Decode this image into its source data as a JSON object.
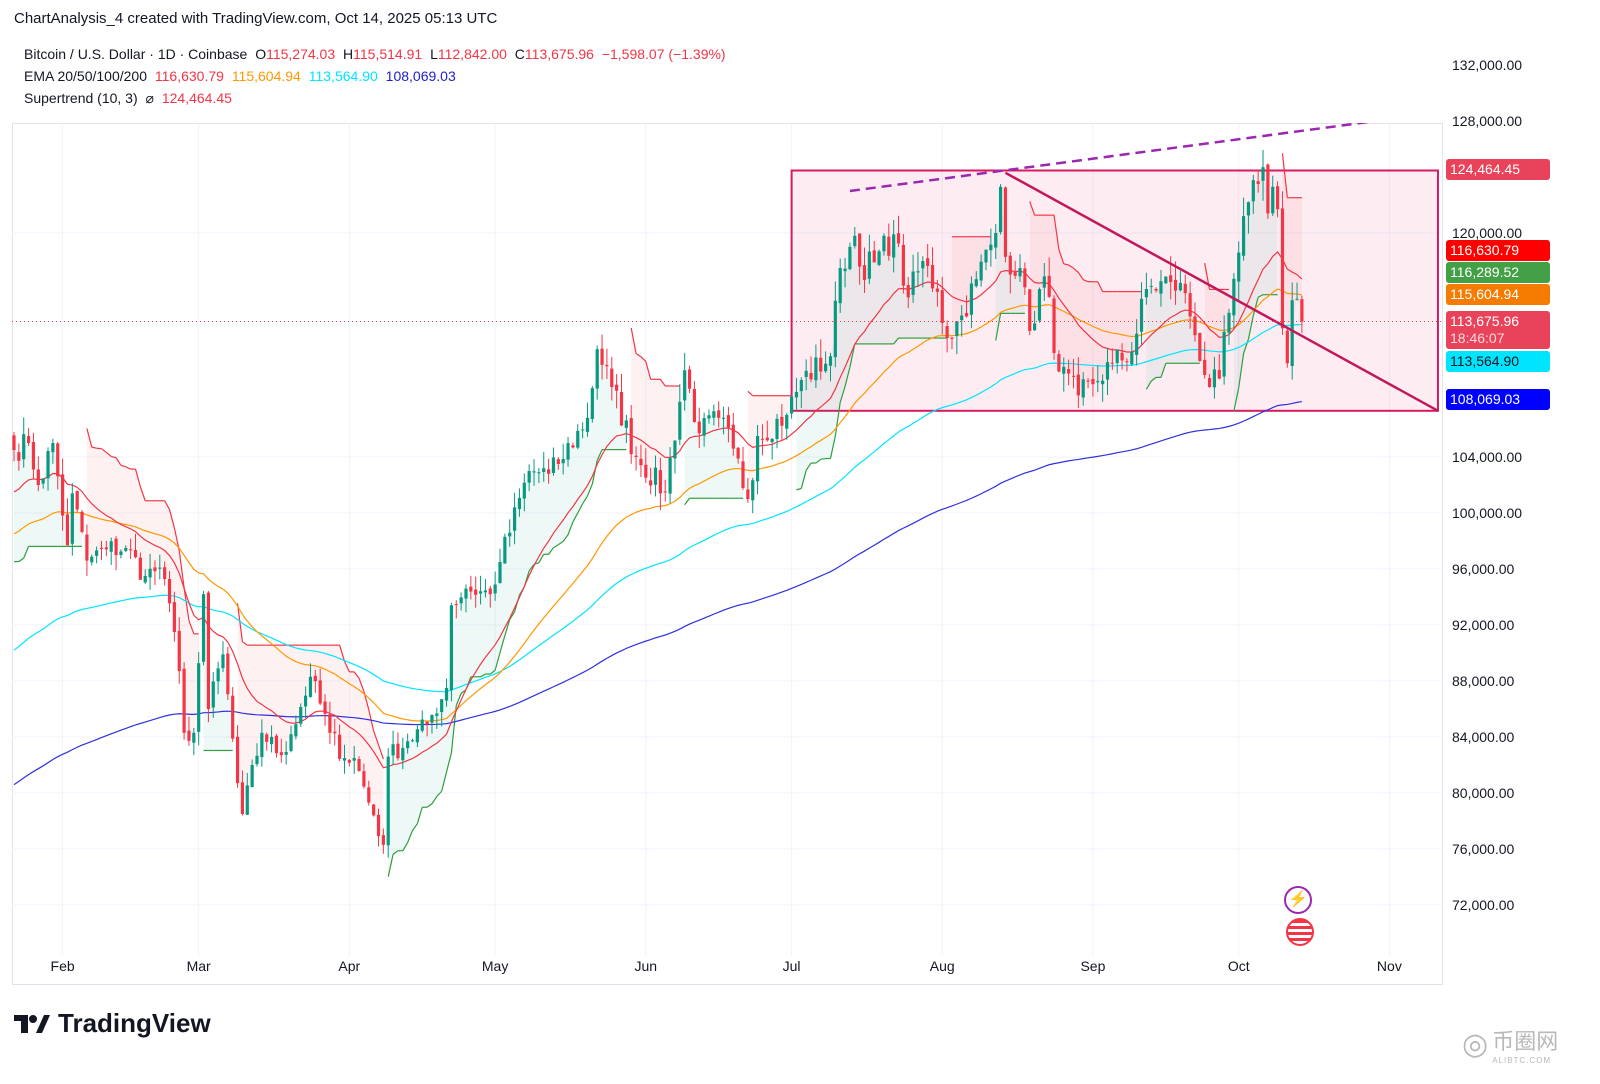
{
  "header": {
    "title": "ChartAnalysis_4 created with TradingView.com, Oct 14, 2025 05:13 UTC",
    "symbol": "Bitcoin / U.S. Dollar · 1D · Coinbase",
    "open_label": "O",
    "open": "115,274.03",
    "high_label": "H",
    "high": "115,514.91",
    "low_label": "L",
    "low": "112,842.00",
    "close_label": "C",
    "close": "113,675.96",
    "change": "−1,598.07 (−1.39%)",
    "ema_label": "EMA 20/50/100/200",
    "ema20": "116,630.79",
    "ema50": "115,604.94",
    "ema100": "113,564.90",
    "ema200": "108,069.03",
    "supertrend_label": "Supertrend (10, 3)",
    "supertrend_symbol": "⌀",
    "supertrend_value": "124,464.45"
  },
  "price_labels": [
    {
      "text": "124,464.45",
      "value": 124464.45,
      "bg": "#e8435a",
      "fg": "#ffffff"
    },
    {
      "text": "116,630.79",
      "value": 116630.79,
      "bg": "#ff0000",
      "fg": "#ffffff"
    },
    {
      "text": "116,289.52",
      "value": 116289.52,
      "bg": "#43a047",
      "fg": "#ffffff"
    },
    {
      "text": "115,604.94",
      "value": 115604.94,
      "bg": "#f57c00",
      "fg": "#ffffff"
    },
    {
      "text": "113,675.96",
      "sub": "18:46:07",
      "value": 113675.96,
      "bg": "#e8435a",
      "fg": "#ffffff"
    },
    {
      "text": "113,564.90",
      "value": 113564.9,
      "bg": "#00e5ff",
      "fg": "#131722"
    },
    {
      "text": "108,069.03",
      "value": 108069.03,
      "bg": "#0000ff",
      "fg": "#ffffff"
    }
  ],
  "colors": {
    "up": "#089981",
    "down": "#f23645",
    "ema20": "#f23645",
    "ema50": "#ff9800",
    "ema100": "#00e5ff",
    "ema200": "#3030e0",
    "st_up": "#2e9e3e",
    "st_down": "#f23645",
    "drawing": "#c2185b",
    "dashed": "#9c27b0"
  },
  "footer": {
    "brand": "TradingView",
    "watermark": "币圈网",
    "watermark_sub": "ALIBTC.COM"
  },
  "chart_data": {
    "type": "candlestick",
    "title": "Bitcoin / U.S. Dollar · 1D · Coinbase",
    "start_date": "2025-01-22",
    "ylim": [
      69000,
      135000
    ],
    "y_ticks": [
      "132,000.00",
      "128,000.00",
      "120,000.00",
      "104,000.00",
      "100,000.00",
      "96,000.00",
      "92,000.00",
      "88,000.00",
      "84,000.00",
      "80,000.00",
      "76,000.00",
      "72,000.00"
    ],
    "y_tick_values": [
      132000,
      128000,
      120000,
      104000,
      100000,
      96000,
      92000,
      88000,
      84000,
      80000,
      76000,
      72000
    ],
    "x_ticks": [
      {
        "label": "Feb",
        "date": "02-01"
      },
      {
        "label": "Mar",
        "date": "03-01"
      },
      {
        "label": "Apr",
        "date": "04-01"
      },
      {
        "label": "May",
        "date": "05-01"
      },
      {
        "label": "Jun",
        "date": "06-01"
      },
      {
        "label": "Jul",
        "date": "07-01"
      },
      {
        "label": "Aug",
        "date": "08-01"
      },
      {
        "label": "Sep",
        "date": "09-01"
      },
      {
        "label": "Oct",
        "date": "10-01"
      },
      {
        "label": "Nov",
        "date": "11-01"
      }
    ],
    "xlim_dates": [
      "01-22",
      "11-12"
    ],
    "close_keypoints_k": [
      [
        "01-22",
        104.5
      ],
      [
        "01-25",
        105
      ],
      [
        "01-27",
        102
      ],
      [
        "01-30",
        105
      ],
      [
        "02-02",
        97.7
      ],
      [
        "02-03",
        101.4
      ],
      [
        "02-06",
        96.6
      ],
      [
        "02-10",
        97.4
      ],
      [
        "02-14",
        97.5
      ],
      [
        "02-18",
        95.5
      ],
      [
        "02-21",
        96.1
      ],
      [
        "02-24",
        91.5
      ],
      [
        "02-25",
        88.7
      ],
      [
        "02-26",
        84.3
      ],
      [
        "02-28",
        84.3
      ],
      [
        "03-02",
        94.2
      ],
      [
        "03-03",
        86
      ],
      [
        "03-06",
        89.9
      ],
      [
        "03-09",
        80.7
      ],
      [
        "03-10",
        78.5
      ],
      [
        "03-14",
        84.3
      ],
      [
        "03-18",
        82.7
      ],
      [
        "03-20",
        84.2
      ],
      [
        "03-24",
        88.3
      ],
      [
        "03-28",
        84.3
      ],
      [
        "03-31",
        82.5
      ],
      [
        "04-02",
        82.5
      ],
      [
        "04-06",
        78.4
      ],
      [
        "04-08",
        76.3
      ],
      [
        "04-09",
        82.6
      ],
      [
        "04-13",
        83.7
      ],
      [
        "04-17",
        84.9
      ],
      [
        "04-21",
        87.5
      ],
      [
        "04-22",
        93.4
      ],
      [
        "04-25",
        94.6
      ],
      [
        "04-30",
        94.2
      ],
      [
        "05-02",
        96.5
      ],
      [
        "05-08",
        103
      ],
      [
        "05-12",
        102.8
      ],
      [
        "05-14",
        103.5
      ],
      [
        "05-20",
        106.8
      ],
      [
        "05-22",
        111.7
      ],
      [
        "05-25",
        109
      ],
      [
        "05-30",
        104
      ],
      [
        "06-05",
        101.5
      ],
      [
        "06-09",
        110.2
      ],
      [
        "06-12",
        105.7
      ],
      [
        "06-16",
        106.8
      ],
      [
        "06-19",
        104.6
      ],
      [
        "06-22",
        101
      ],
      [
        "06-24",
        105.5
      ],
      [
        "06-30",
        107
      ],
      [
        "07-03",
        109.5
      ],
      [
        "07-09",
        111.2
      ],
      [
        "07-11",
        117.5
      ],
      [
        "07-14",
        119.8
      ],
      [
        "07-15",
        117.6
      ],
      [
        "07-18",
        117.9
      ],
      [
        "07-22",
        119.9
      ],
      [
        "07-25",
        115.4
      ],
      [
        "07-28",
        118
      ],
      [
        "07-31",
        115.8
      ],
      [
        "08-02",
        112.5
      ],
      [
        "08-05",
        114.1
      ],
      [
        "08-08",
        116.7
      ],
      [
        "08-12",
        120
      ],
      [
        "08-13",
        123.3
      ],
      [
        "08-14",
        118.3
      ],
      [
        "08-17",
        117.5
      ],
      [
        "08-19",
        113
      ],
      [
        "08-22",
        116.9
      ],
      [
        "08-25",
        110.1
      ],
      [
        "08-29",
        108.4
      ],
      [
        "09-01",
        109.2
      ],
      [
        "09-05",
        110.7
      ],
      [
        "09-09",
        111.5
      ],
      [
        "09-12",
        116
      ],
      [
        "09-17",
        116.5
      ],
      [
        "09-20",
        115.7
      ],
      [
        "09-22",
        112.7
      ],
      [
        "09-25",
        109
      ],
      [
        "09-27",
        109.6
      ],
      [
        "09-29",
        114.3
      ],
      [
        "10-01",
        118.6
      ],
      [
        "10-03",
        122.2
      ],
      [
        "10-05",
        123.5
      ],
      [
        "10-06",
        124.7
      ],
      [
        "10-07",
        121.4
      ],
      [
        "10-08",
        123.3
      ],
      [
        "10-09",
        121.7
      ],
      [
        "10-10",
        113.2
      ],
      [
        "10-11",
        110.7
      ],
      [
        "10-12",
        115.2
      ],
      [
        "10-13",
        115.3
      ],
      [
        "10-14",
        113.675
      ]
    ],
    "ema_start_values_k": {
      "ema20": 101.5,
      "ema50": 98.5,
      "ema100": 90.2,
      "ema200": 80.6
    },
    "current_price": 113675.96,
    "drawings": {
      "range_box": {
        "from": "07-01",
        "to": "11-11",
        "top": 124464.45,
        "bottom": 107300
      },
      "descending_trendline": {
        "from": [
          "08-14",
          124300
        ],
        "to": [
          "11-11",
          107300
        ]
      },
      "dashed_resistance": {
        "from": [
          "07-13",
          123000
        ],
        "to": [
          "11-09",
          128500
        ]
      }
    }
  }
}
